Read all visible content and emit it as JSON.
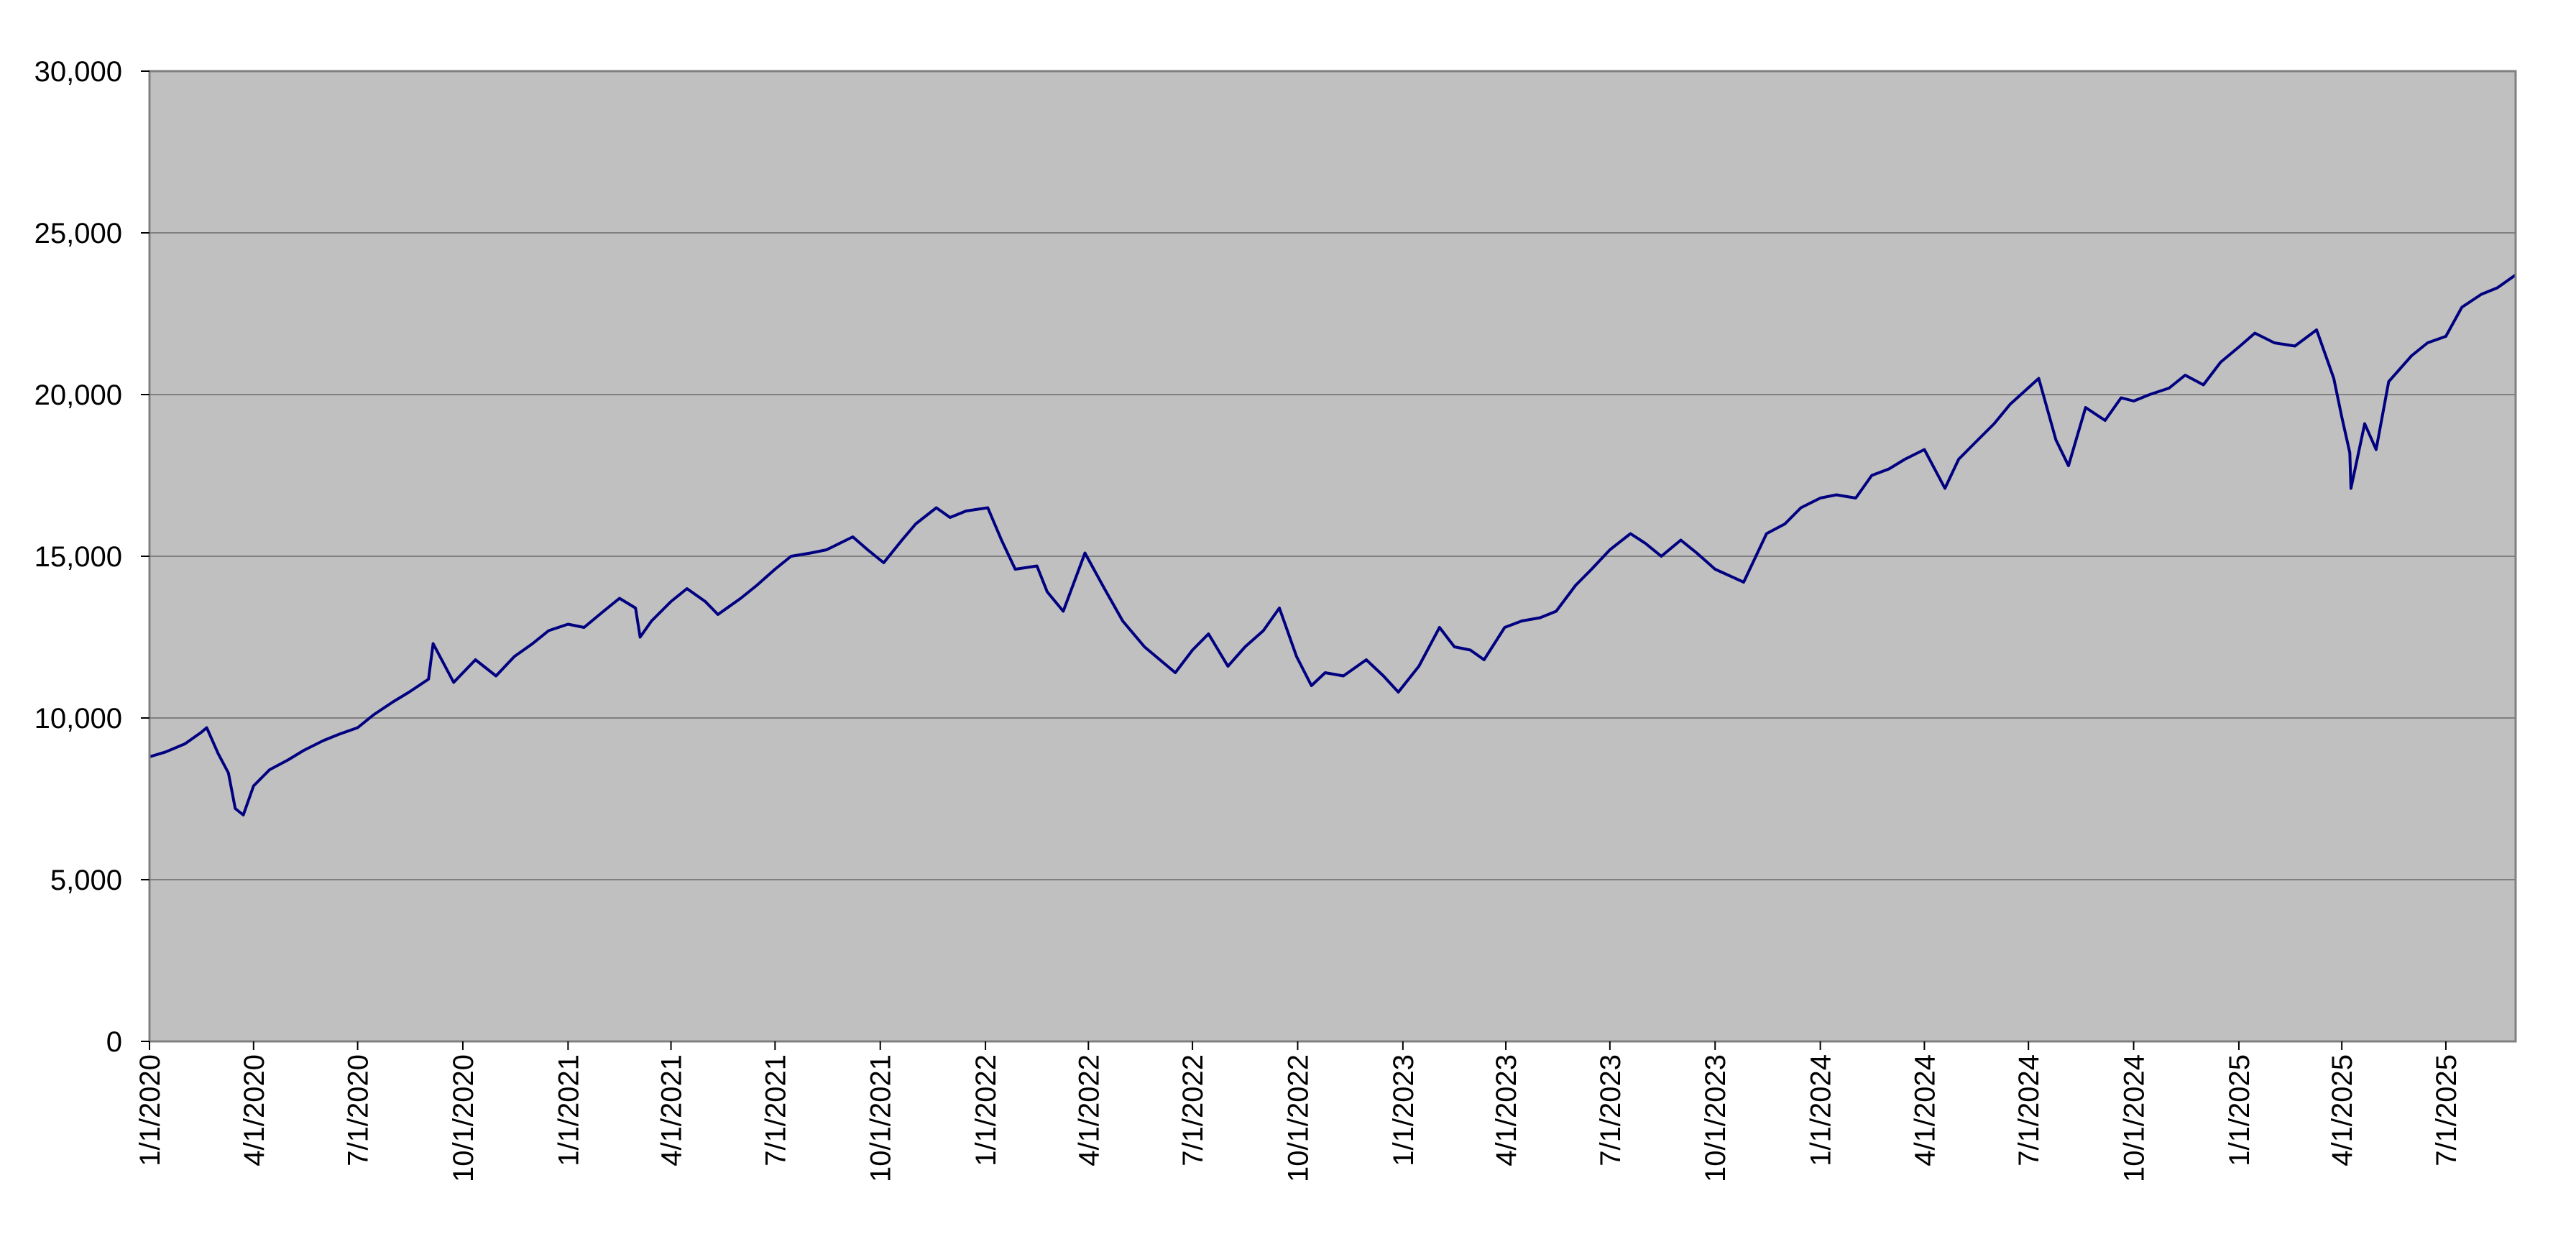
{
  "chart_data": {
    "type": "line",
    "title": "",
    "xlabel": "",
    "ylabel": "",
    "ylim": [
      0,
      30000
    ],
    "yticks": [
      0,
      5000,
      10000,
      15000,
      20000,
      25000,
      30000
    ],
    "ytick_labels": [
      "0",
      "5,000",
      "10,000",
      "15,000",
      "20,000",
      "25,000",
      "30,000"
    ],
    "xlim": [
      "2020-01-01",
      "2025-08-31"
    ],
    "xticks": [
      "2020-01-01",
      "2020-04-01",
      "2020-07-01",
      "2020-10-01",
      "2021-01-01",
      "2021-04-01",
      "2021-07-01",
      "2021-10-01",
      "2022-01-01",
      "2022-04-01",
      "2022-07-01",
      "2022-10-01",
      "2023-01-01",
      "2023-04-01",
      "2023-07-01",
      "2023-10-01",
      "2024-01-01",
      "2024-04-01",
      "2024-07-01",
      "2024-10-01",
      "2025-01-01",
      "2025-04-01",
      "2025-07-01"
    ],
    "xtick_labels": [
      "1/1/2020",
      "4/1/2020",
      "7/1/2020",
      "10/1/2020",
      "1/1/2021",
      "4/1/2021",
      "7/1/2021",
      "10/1/2021",
      "1/1/2022",
      "4/1/2022",
      "7/1/2022",
      "10/1/2022",
      "1/1/2023",
      "4/1/2023",
      "7/1/2023",
      "10/1/2023",
      "1/1/2024",
      "4/1/2024",
      "7/1/2024",
      "10/1/2024",
      "1/1/2025",
      "4/1/2025",
      "7/1/2025"
    ],
    "grid": "horizontal",
    "colors": {
      "plot_bg": "#c0c0c0",
      "line": "#000080",
      "grid": "#808080",
      "frame": "#808080"
    },
    "series": [
      {
        "name": "",
        "x": [
          "2020-01-01",
          "2020-01-15",
          "2020-02-01",
          "2020-02-15",
          "2020-02-20",
          "2020-03-01",
          "2020-03-10",
          "2020-03-16",
          "2020-03-23",
          "2020-04-01",
          "2020-04-15",
          "2020-05-01",
          "2020-05-15",
          "2020-06-01",
          "2020-06-15",
          "2020-07-01",
          "2020-07-15",
          "2020-08-01",
          "2020-08-15",
          "2020-09-01",
          "2020-09-05",
          "2020-09-23",
          "2020-10-12",
          "2020-10-30",
          "2020-11-15",
          "2020-12-01",
          "2020-12-15",
          "2021-01-01",
          "2021-01-15",
          "2021-02-01",
          "2021-02-15",
          "2021-03-01",
          "2021-03-05",
          "2021-03-15",
          "2021-04-01",
          "2021-04-15",
          "2021-05-01",
          "2021-05-12",
          "2021-06-01",
          "2021-06-15",
          "2021-07-01",
          "2021-07-15",
          "2021-08-01",
          "2021-08-15",
          "2021-09-07",
          "2021-09-20",
          "2021-10-04",
          "2021-10-20",
          "2021-11-01",
          "2021-11-19",
          "2021-12-01",
          "2021-12-15",
          "2022-01-03",
          "2022-01-15",
          "2022-01-27",
          "2022-02-15",
          "2022-02-24",
          "2022-03-10",
          "2022-03-29",
          "2022-04-15",
          "2022-05-01",
          "2022-05-20",
          "2022-06-16",
          "2022-07-01",
          "2022-07-15",
          "2022-08-01",
          "2022-08-16",
          "2022-09-01",
          "2022-09-15",
          "2022-09-30",
          "2022-10-13",
          "2022-10-25",
          "2022-11-10",
          "2022-11-30",
          "2022-12-15",
          "2022-12-28",
          "2023-01-15",
          "2023-02-02",
          "2023-02-15",
          "2023-03-01",
          "2023-03-13",
          "2023-03-31",
          "2023-04-15",
          "2023-05-01",
          "2023-05-15",
          "2023-06-01",
          "2023-06-15",
          "2023-07-01",
          "2023-07-19",
          "2023-08-01",
          "2023-08-15",
          "2023-09-01",
          "2023-09-15",
          "2023-10-01",
          "2023-10-26",
          "2023-11-15",
          "2023-12-01",
          "2023-12-15",
          "2024-01-01",
          "2024-01-15",
          "2024-02-01",
          "2024-02-15",
          "2024-03-01",
          "2024-03-15",
          "2024-04-01",
          "2024-04-19",
          "2024-05-01",
          "2024-05-15",
          "2024-06-01",
          "2024-06-15",
          "2024-07-10",
          "2024-07-25",
          "2024-08-05",
          "2024-08-20",
          "2024-09-06",
          "2024-09-20",
          "2024-10-01",
          "2024-10-15",
          "2024-11-01",
          "2024-11-15",
          "2024-12-01",
          "2024-12-16",
          "2025-01-02",
          "2025-01-15",
          "2025-02-01",
          "2025-02-19",
          "2025-03-10",
          "2025-03-25",
          "2025-04-01",
          "2025-04-08",
          "2025-04-09",
          "2025-04-21",
          "2025-05-01",
          "2025-05-12",
          "2025-06-01",
          "2025-06-15",
          "2025-07-01",
          "2025-07-15",
          "2025-08-01",
          "2025-08-15",
          "2025-08-31"
        ],
        "y": [
          8800,
          8950,
          9200,
          9550,
          9700,
          8900,
          8300,
          7200,
          7000,
          7900,
          8400,
          8700,
          9000,
          9300,
          9500,
          9700,
          10100,
          10500,
          10800,
          11200,
          12300,
          11100,
          11800,
          11300,
          11900,
          12300,
          12700,
          12900,
          12800,
          13300,
          13700,
          13400,
          12500,
          13000,
          13600,
          14000,
          13600,
          13200,
          13700,
          14100,
          14600,
          15000,
          15100,
          15200,
          15600,
          15200,
          14800,
          15500,
          16000,
          16500,
          16200,
          16400,
          16500,
          15500,
          14600,
          14700,
          13900,
          13300,
          15100,
          14000,
          13000,
          12200,
          11400,
          12100,
          12600,
          11600,
          12200,
          12700,
          13400,
          11900,
          11000,
          11400,
          11300,
          11800,
          11300,
          10800,
          11600,
          12800,
          12200,
          12100,
          11800,
          12800,
          13000,
          13100,
          13300,
          14100,
          14600,
          15200,
          15700,
          15400,
          15000,
          15500,
          15100,
          14600,
          14200,
          15700,
          16000,
          16500,
          16800,
          16900,
          16800,
          17500,
          17700,
          18000,
          18300,
          17100,
          18000,
          18500,
          19100,
          19700,
          20500,
          18600,
          17800,
          19600,
          19200,
          19900,
          19800,
          20000,
          20200,
          20600,
          20300,
          21000,
          21500,
          21900,
          21600,
          21500,
          22000,
          20500,
          19300,
          18200,
          17100,
          19100,
          18300,
          20400,
          21200,
          21600,
          21800,
          22700,
          23100,
          23300,
          23700
        ]
      }
    ]
  }
}
